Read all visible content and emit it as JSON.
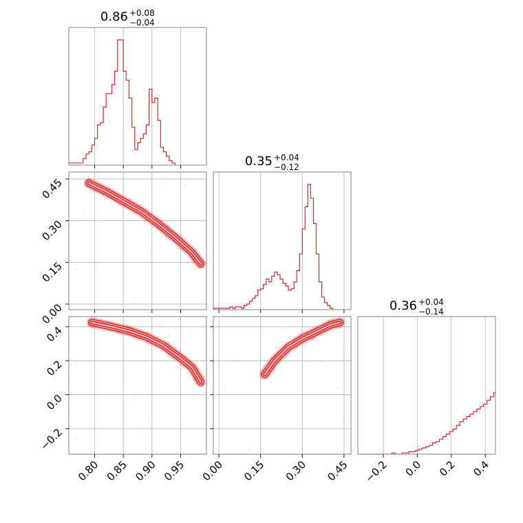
{
  "chart_data": {
    "type": "corner",
    "color": "#d62728",
    "grid": true,
    "parameters": [
      {
        "range": [
          0.755,
          0.995
        ],
        "ticks": [
          0.8,
          0.85,
          0.9,
          0.95
        ],
        "tick_labels": [
          "0.80",
          "0.85",
          "0.90",
          "0.95"
        ]
      },
      {
        "range": [
          -0.02,
          0.475
        ],
        "ticks": [
          0.0,
          0.15,
          0.3,
          0.45
        ],
        "tick_labels": [
          "0.00",
          "0.15",
          "0.30",
          "0.45"
        ]
      },
      {
        "range": [
          -0.35,
          0.46
        ],
        "ticks": [
          -0.2,
          0.0,
          0.2,
          0.4
        ],
        "tick_labels": [
          "−0.2",
          "0.0",
          "0.2",
          "0.4"
        ]
      }
    ],
    "titles": [
      {
        "median": "0.86",
        "plus": "+0.08",
        "minus": "−0.04"
      },
      {
        "median": "0.35",
        "plus": "+0.04",
        "minus": "−0.12"
      },
      {
        "median": "0.36",
        "plus": "+0.04",
        "minus": "−0.14"
      }
    ],
    "histograms": [
      {
        "edges_start": 0.755,
        "bin_width": 0.005,
        "counts": [
          1,
          1,
          1,
          1,
          1,
          3,
          5,
          6,
          9,
          12,
          18,
          19,
          26,
          32,
          32,
          36,
          42,
          56,
          56,
          42,
          38,
          30,
          17,
          7,
          10,
          12,
          14,
          18,
          34,
          28,
          30,
          20,
          8,
          6,
          4,
          2,
          1
        ]
      },
      {
        "edges_start": -0.02,
        "bin_width": 0.01,
        "counts": [
          1,
          1,
          1,
          1,
          1,
          1,
          2,
          1,
          2,
          2,
          1,
          3,
          4,
          6,
          8,
          10,
          14,
          15,
          18,
          22,
          20,
          24,
          27,
          25,
          22,
          19,
          17,
          14,
          15,
          20,
          28,
          40,
          58,
          74,
          90,
          80,
          62,
          40,
          20,
          9,
          5,
          3,
          1
        ]
      },
      {
        "edges_start": -0.35,
        "bin_width": 0.02,
        "counts": [
          0,
          0,
          0,
          0,
          0,
          0,
          0,
          0,
          0,
          0,
          1,
          0,
          0,
          1,
          1,
          2,
          2,
          3,
          4,
          5,
          6,
          7,
          9,
          10,
          12,
          14,
          16,
          18,
          20,
          23,
          26,
          28,
          30,
          32,
          34,
          36,
          38,
          40,
          43,
          46,
          49,
          52,
          56,
          60,
          66,
          72,
          78,
          85,
          92,
          100
        ]
      }
    ],
    "pairs": [
      {
        "x": 0,
        "y": 1,
        "ridge": [
          [
            0.79,
            0.435
          ],
          [
            0.82,
            0.405
          ],
          [
            0.85,
            0.37
          ],
          [
            0.88,
            0.335
          ],
          [
            0.91,
            0.29
          ],
          [
            0.94,
            0.24
          ],
          [
            0.97,
            0.185
          ],
          [
            0.985,
            0.145
          ]
        ]
      },
      {
        "x": 0,
        "y": 2,
        "ridge": [
          [
            0.795,
            0.425
          ],
          [
            0.83,
            0.4
          ],
          [
            0.86,
            0.375
          ],
          [
            0.89,
            0.34
          ],
          [
            0.92,
            0.29
          ],
          [
            0.95,
            0.215
          ],
          [
            0.97,
            0.16
          ],
          [
            0.985,
            0.075
          ]
        ]
      },
      {
        "x": 1,
        "y": 2,
        "ridge": [
          [
            0.165,
            0.12
          ],
          [
            0.2,
            0.2
          ],
          [
            0.25,
            0.28
          ],
          [
            0.3,
            0.33
          ],
          [
            0.35,
            0.37
          ],
          [
            0.4,
            0.41
          ],
          [
            0.435,
            0.425
          ]
        ]
      }
    ]
  }
}
